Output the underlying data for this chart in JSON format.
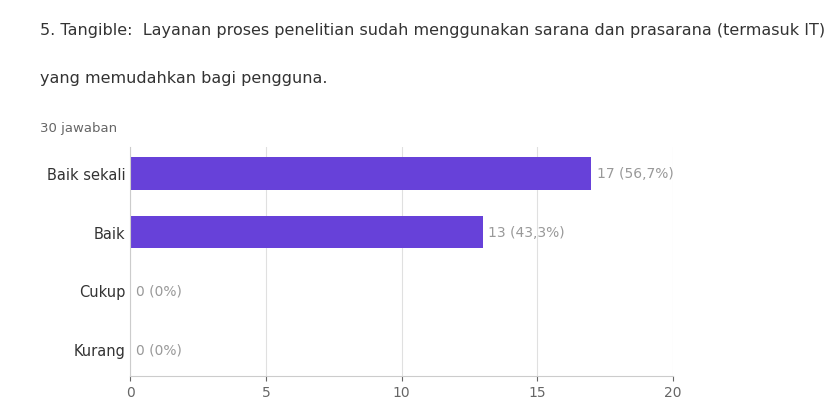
{
  "title_line1": "5. Tangible:  Layanan proses penelitian sudah menggunakan sarana dan prasarana (termasuk IT)",
  "title_line2": "yang memudahkan bagi pengguna.",
  "subtitle": "30 jawaban",
  "categories": [
    "Baik sekali",
    "Baik",
    "Cukup",
    "Kurang"
  ],
  "values": [
    17,
    13,
    0,
    0
  ],
  "labels": [
    "17 (56,7%)",
    "13 (43,3%)",
    "0 (0%)",
    "0 (0%)"
  ],
  "bar_color": "#6741d9",
  "label_color": "#999999",
  "title_color": "#333333",
  "subtitle_color": "#666666",
  "background_color": "#ffffff",
  "grid_color": "#e0e0e0",
  "xlim": [
    0,
    20
  ],
  "xticks": [
    0,
    5,
    10,
    15,
    20
  ],
  "title_fontsize": 11.5,
  "subtitle_fontsize": 9.5,
  "tick_label_fontsize": 10,
  "bar_label_fontsize": 10,
  "yticklabel_fontsize": 10.5
}
